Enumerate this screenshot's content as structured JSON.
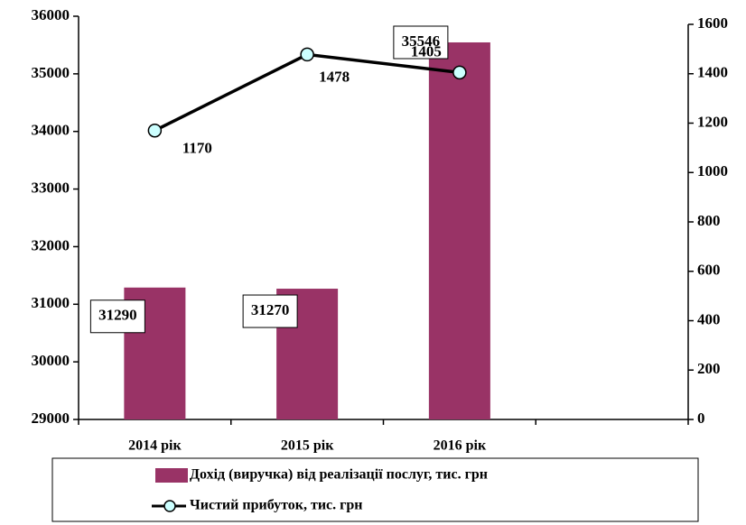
{
  "chart_data": {
    "type": "bar",
    "categories": [
      "2014 рік",
      "2015 рік",
      "2016 рік",
      null
    ],
    "series": [
      {
        "name": "Дохід (виручка) від реалізації послуг, тис. грн",
        "type": "bar",
        "color": "#993366",
        "values": [
          31290,
          31270,
          35546,
          null
        ]
      },
      {
        "name": "Чистий прибуток, тис. грн",
        "type": "line",
        "axis": "y2",
        "color": "#000000",
        "marker_color": "#ccffff",
        "values": [
          1170,
          1478,
          1405,
          null
        ]
      }
    ],
    "ylim": [
      29000,
      36000
    ],
    "yticks": [
      29000,
      30000,
      31000,
      32000,
      33000,
      34000,
      35000,
      36000
    ],
    "y2lim": [
      0,
      1600
    ],
    "y2ticks": [
      0,
      200,
      400,
      600,
      800,
      1000,
      1200,
      1400,
      1600
    ],
    "legend": "bottom"
  }
}
